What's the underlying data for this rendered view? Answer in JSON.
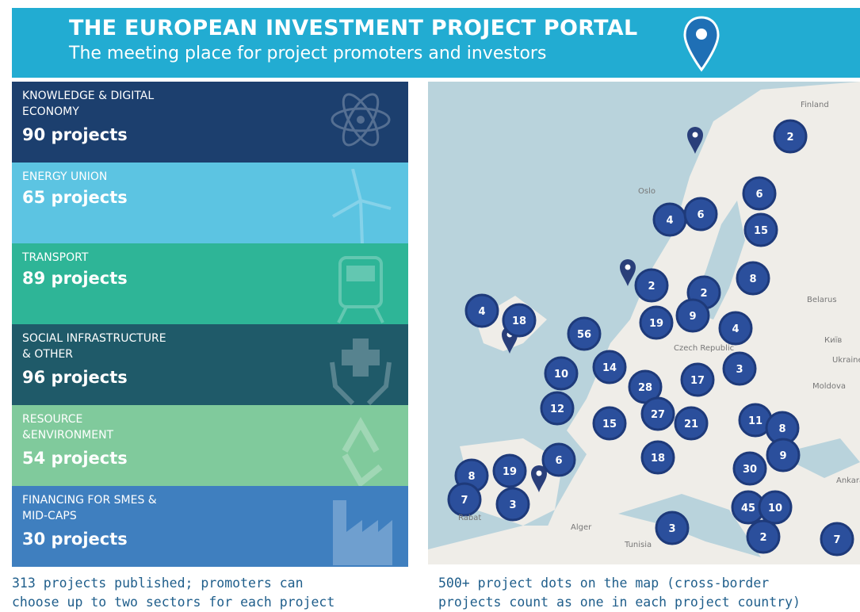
{
  "header": {
    "title": "THE EUROPEAN INVESTMENT PROJECT PORTAL",
    "subtitle": "The meeting place for project promoters and investors"
  },
  "sectors": [
    {
      "name_lines": [
        "KNOWLEDGE & DIGITAL",
        "ECONOMY"
      ],
      "count": "90 projects"
    },
    {
      "name_lines": [
        "ENERGY UNION"
      ],
      "count": "65 projects"
    },
    {
      "name_lines": [
        "TRANSPORT"
      ],
      "count": "89 projects"
    },
    {
      "name_lines": [
        "SOCIAL INFRASTRUCTURE",
        "& OTHER"
      ],
      "count": "96 projects"
    },
    {
      "name_lines": [
        "RESOURCE",
        "&ENVIRONMENT"
      ],
      "count": "54 projects"
    },
    {
      "name_lines": [
        "FINANCING FOR SMES &",
        "MID-CAPS"
      ],
      "count": "30 projects"
    }
  ],
  "map": {
    "places": [
      "Finland",
      "Oslo",
      "Belarus",
      "Київ",
      "Ukraine",
      "Moldova",
      "Ankara",
      "Alger",
      "Tunisia",
      "Czech Republic",
      "Rabat"
    ],
    "clusters": [
      "2",
      "6",
      "4",
      "6",
      "15",
      "8",
      "2",
      "2",
      "19",
      "9",
      "4",
      "4",
      "18",
      "56",
      "14",
      "10",
      "28",
      "17",
      "3",
      "12",
      "27",
      "21",
      "11",
      "8",
      "15",
      "9",
      "18",
      "6",
      "19",
      "8",
      "7",
      "3",
      "30",
      "45",
      "10",
      "2",
      "3",
      "7"
    ]
  },
  "captions": {
    "left": [
      "313 projects published; promoters can",
      "choose up to two sectors for each project"
    ],
    "right": [
      "500+ project dots on the map (cross-border",
      "projects count as one in each project country)"
    ]
  }
}
